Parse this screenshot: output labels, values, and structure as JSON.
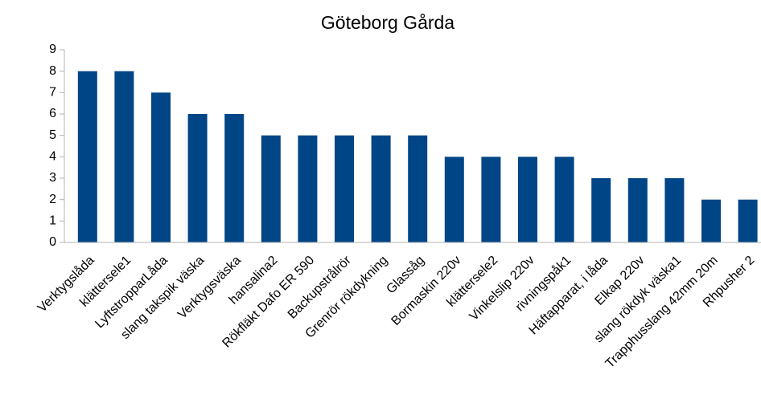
{
  "chart_data": {
    "type": "bar",
    "title": "Göteborg Gårda",
    "categories": [
      "Verktygslåda",
      "klättersele1",
      "LyftstropparLåda",
      "slang takspik väska",
      "Verktygsväska",
      "hansalina2",
      "Rökfläkt Dafo ER 590",
      "Backupstrålrör",
      "Grenrör rökdykning",
      "Glassåg",
      "Bormaskin 220v",
      "klättersele2",
      "Vinkelslip 220v",
      "rivningspåk1",
      "Häftapparat, i låda",
      "Elkap 220v",
      "slang rökdyk väska1",
      "Trapphusslang 42mm 20m",
      "Rhpusher 2"
    ],
    "values": [
      8,
      8,
      7,
      6,
      6,
      5,
      5,
      5,
      5,
      5,
      4,
      4,
      4,
      4,
      3,
      3,
      3,
      2,
      2
    ],
    "color": "#004586",
    "ylim": [
      0,
      9
    ],
    "yticks": [
      0,
      1,
      2,
      3,
      4,
      5,
      6,
      7,
      8,
      9
    ],
    "grid": false
  }
}
